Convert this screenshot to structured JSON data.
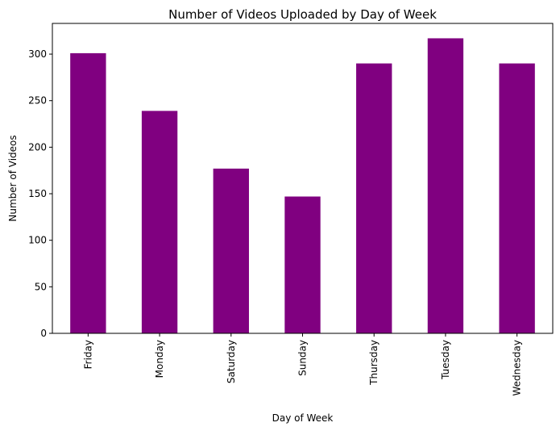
{
  "chart_data": {
    "type": "bar",
    "title": "Number of Videos Uploaded by Day of Week",
    "xlabel": "Day of Week",
    "ylabel": "Number of Videos",
    "categories": [
      "Friday",
      "Monday",
      "Saturday",
      "Sunday",
      "Thursday",
      "Tuesday",
      "Wednesday"
    ],
    "values": [
      301,
      239,
      177,
      147,
      290,
      317,
      290
    ],
    "ylim": [
      0,
      333
    ],
    "yticks": [
      0,
      50,
      100,
      150,
      200,
      250,
      300
    ],
    "bar_color": "#800080",
    "grid": false,
    "legend": "none"
  }
}
